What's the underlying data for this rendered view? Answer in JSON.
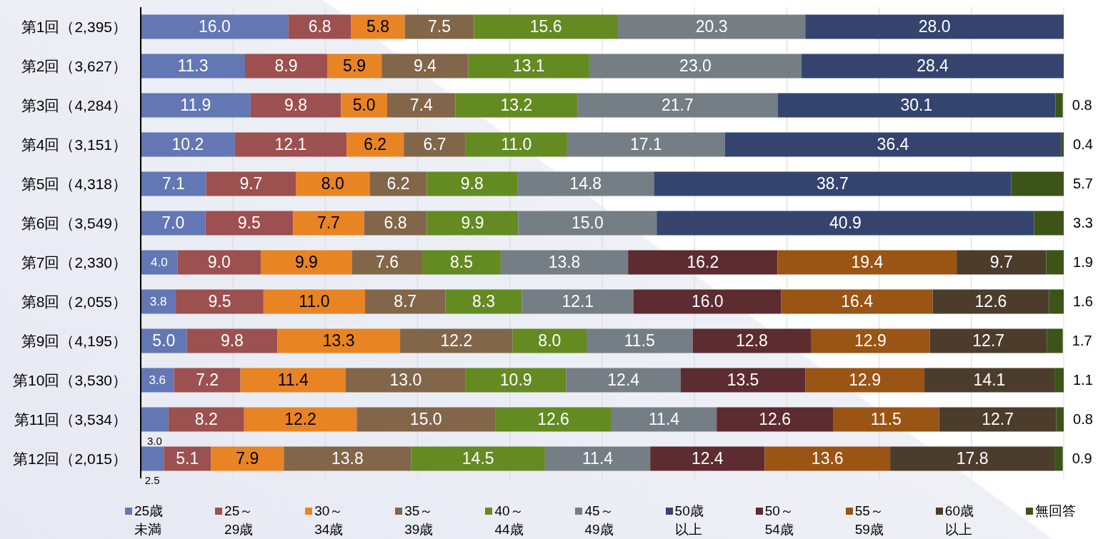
{
  "chart_data": {
    "type": "bar",
    "orientation": "horizontal",
    "stacked": true,
    "categories": [
      "第1回（2,395）",
      "第2回（3,627）",
      "第3回（4,284）",
      "第4回（3,151）",
      "第5回（4,318）",
      "第6回（3,549）",
      "第7回（2,330）",
      "第8回（2,055）",
      "第9回（4,195）",
      "第10回（3,530）",
      "第11回（3,534）",
      "第12回（2,015）"
    ],
    "xlim": [
      0,
      100
    ],
    "tick_labels": "y",
    "grid": "x",
    "legend": "bottom",
    "series": [
      {
        "name": "25歳未満",
        "color": "#6277b3",
        "values": [
          16.0,
          11.3,
          11.9,
          10.2,
          7.1,
          7.0,
          4.0,
          3.8,
          5.0,
          3.6,
          3.0,
          2.5
        ],
        "value_labels": [
          "16.0",
          "11.3",
          "11.9",
          "10.2",
          "7.1",
          "7.0",
          "4.0",
          "3.8",
          "5.0",
          "3.6",
          "3.0",
          "2.5"
        ]
      },
      {
        "name": "25～29歳",
        "color": "#9c5050",
        "values": [
          6.8,
          8.9,
          9.8,
          12.1,
          9.7,
          9.5,
          9.0,
          9.5,
          9.8,
          7.2,
          8.2,
          5.1
        ],
        "value_labels": [
          "6.8",
          "8.9",
          "9.8",
          "12.1",
          "9.7",
          "9.5",
          "9.0",
          "9.5",
          "9.8",
          "7.2",
          "8.2",
          "5.1"
        ]
      },
      {
        "name": "30～34歳",
        "color": "#e88424",
        "values": [
          5.8,
          5.9,
          5.0,
          6.2,
          8.0,
          7.7,
          9.9,
          11.0,
          13.3,
          11.4,
          12.2,
          7.9
        ],
        "value_labels": [
          "5.8",
          "5.9",
          "5.0",
          "6.2",
          "8.0",
          "7.7",
          "9.9",
          "11.0",
          "13.3",
          "11.4",
          "12.2",
          "7.9"
        ]
      },
      {
        "name": "35～39歳",
        "color": "#82664a",
        "values": [
          7.5,
          9.4,
          7.4,
          6.7,
          6.2,
          6.8,
          7.6,
          8.7,
          12.2,
          13.0,
          15.0,
          13.8
        ],
        "value_labels": [
          "7.5",
          "9.4",
          "7.4",
          "6.7",
          "6.2",
          "6.8",
          "7.6",
          "8.7",
          "12.2",
          "13.0",
          "15.0",
          "13.8"
        ]
      },
      {
        "name": "40～44歳",
        "color": "#648a22",
        "values": [
          15.6,
          13.1,
          13.2,
          11.0,
          9.8,
          9.9,
          8.5,
          8.3,
          8.0,
          10.9,
          12.6,
          14.5
        ],
        "value_labels": [
          "15.6",
          "13.1",
          "13.2",
          "11.0",
          "9.8",
          "9.9",
          "8.5",
          "8.3",
          "8.0",
          "10.9",
          "12.6",
          "14.5"
        ]
      },
      {
        "name": "45～49歳",
        "color": "#747e84",
        "values": [
          20.3,
          23.0,
          21.7,
          17.1,
          14.8,
          15.0,
          13.8,
          12.1,
          11.5,
          12.4,
          11.4,
          11.4
        ],
        "value_labels": [
          "20.3",
          "23.0",
          "21.7",
          "17.1",
          "14.8",
          "15.0",
          "13.8",
          "12.1",
          "11.5",
          "12.4",
          "11.4",
          "11.4"
        ]
      },
      {
        "name": "50歳以上",
        "color": "#34446e",
        "values": [
          28.0,
          28.4,
          30.1,
          36.4,
          38.7,
          40.9,
          null,
          null,
          null,
          null,
          null,
          null
        ],
        "value_labels": [
          "28.0",
          "28.4",
          "30.1",
          "36.4",
          "38.7",
          "40.9",
          null,
          null,
          null,
          null,
          null,
          null
        ]
      },
      {
        "name": "50～54歳",
        "color": "#5c2c30",
        "values": [
          null,
          null,
          null,
          null,
          null,
          null,
          16.2,
          16.0,
          12.8,
          13.5,
          12.6,
          12.4
        ],
        "value_labels": [
          null,
          null,
          null,
          null,
          null,
          null,
          "16.2",
          "16.0",
          "12.8",
          "13.5",
          "12.6",
          "12.4"
        ]
      },
      {
        "name": "55～59歳",
        "color": "#9a5414",
        "values": [
          null,
          null,
          null,
          null,
          null,
          null,
          19.4,
          16.4,
          12.9,
          12.9,
          11.5,
          13.6
        ],
        "value_labels": [
          null,
          null,
          null,
          null,
          null,
          null,
          "19.4",
          "16.4",
          "12.9",
          "12.9",
          "11.5",
          "13.6"
        ]
      },
      {
        "name": "60歳以上",
        "color": "#4c3c2c",
        "values": [
          null,
          null,
          null,
          null,
          null,
          null,
          9.7,
          12.6,
          12.7,
          14.1,
          12.7,
          17.8
        ],
        "value_labels": [
          null,
          null,
          null,
          null,
          null,
          null,
          "9.7",
          "12.6",
          "12.7",
          "14.1",
          "12.7",
          "17.8"
        ]
      },
      {
        "name": "無回答",
        "color": "#3c5418",
        "values": [
          null,
          null,
          0.8,
          0.4,
          5.7,
          3.3,
          1.9,
          1.6,
          1.7,
          1.1,
          0.8,
          0.9
        ],
        "value_labels": [
          null,
          null,
          "0.8",
          "0.4",
          "5.7",
          "3.3",
          "1.9",
          "1.6",
          "1.7",
          "1.1",
          "0.8",
          "0.9"
        ]
      }
    ]
  }
}
